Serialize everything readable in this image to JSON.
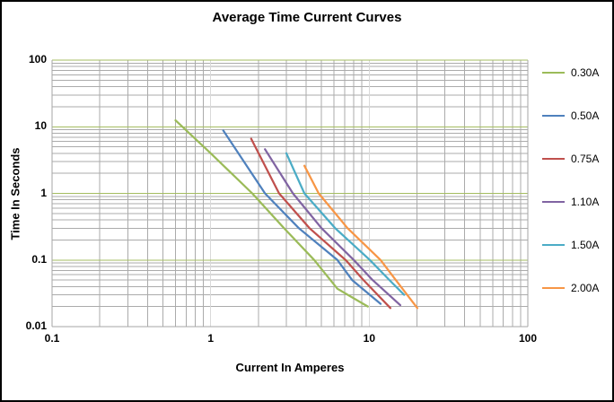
{
  "title": "Average Time Current Curves",
  "chart_data": {
    "type": "line",
    "title": "Average Time Current Curves",
    "xlabel": "Current In Amperes",
    "ylabel": "Time In Seconds",
    "x_scale": "log",
    "y_scale": "log",
    "xlim": [
      0.1,
      100
    ],
    "ylim": [
      0.01,
      100
    ],
    "x_ticks": [
      {
        "label": "0.1",
        "value": 0.1
      },
      {
        "label": "1",
        "value": 1
      },
      {
        "label": "10",
        "value": 10
      },
      {
        "label": "100",
        "value": 100
      }
    ],
    "y_ticks": [
      {
        "label": "100",
        "value": 100
      },
      {
        "label": "10",
        "value": 10
      },
      {
        "label": "1",
        "value": 1
      },
      {
        "label": "0.1",
        "value": 0.1
      },
      {
        "label": "0.01",
        "value": 0.01
      }
    ],
    "grid": "log major+minor, both axes",
    "legend_position": "right",
    "series": [
      {
        "name": "0.30A",
        "color": "#9bbb59",
        "points": [
          [
            0.6,
            12.5
          ],
          [
            1.0,
            4.0
          ],
          [
            1.83,
            1.0
          ],
          [
            2.9,
            0.3
          ],
          [
            4.5,
            0.1
          ],
          [
            6.3,
            0.037
          ],
          [
            9.8,
            0.02
          ]
        ]
      },
      {
        "name": "0.50A",
        "color": "#4f81bd",
        "points": [
          [
            1.2,
            8.8
          ],
          [
            2.2,
            1.0
          ],
          [
            3.6,
            0.3
          ],
          [
            6.3,
            0.1
          ],
          [
            7.8,
            0.05
          ],
          [
            11.8,
            0.022
          ]
        ]
      },
      {
        "name": "0.75A",
        "color": "#c0504d",
        "points": [
          [
            1.8,
            6.6
          ],
          [
            2.7,
            1.0
          ],
          [
            4.2,
            0.3
          ],
          [
            7.1,
            0.1
          ],
          [
            9.2,
            0.05
          ],
          [
            13.6,
            0.019
          ]
        ]
      },
      {
        "name": "1.10A",
        "color": "#8064a2",
        "points": [
          [
            2.2,
            4.6
          ],
          [
            3.3,
            1.0
          ],
          [
            5.0,
            0.3
          ],
          [
            8.0,
            0.1
          ],
          [
            10.5,
            0.05
          ],
          [
            15.7,
            0.021
          ]
        ]
      },
      {
        "name": "1.50A",
        "color": "#4bacc6",
        "points": [
          [
            3.0,
            4.0
          ],
          [
            3.9,
            1.0
          ],
          [
            6.1,
            0.3
          ],
          [
            10.1,
            0.1
          ],
          [
            13.4,
            0.05
          ],
          [
            16.6,
            0.03
          ]
        ]
      },
      {
        "name": "2.00A",
        "color": "#f79646",
        "points": [
          [
            3.9,
            2.6
          ],
          [
            4.8,
            1.0
          ],
          [
            7.3,
            0.3
          ],
          [
            11.8,
            0.1
          ],
          [
            14.7,
            0.05
          ],
          [
            20.1,
            0.019
          ]
        ]
      }
    ]
  },
  "colors": {
    "minor_grid": "#ababab",
    "x_major_grid": "#d9d9d9",
    "y_major_grid": "#a5bd61",
    "axis_line": "#a6a6a6",
    "text": "#000000",
    "outer_border": "#000000"
  }
}
